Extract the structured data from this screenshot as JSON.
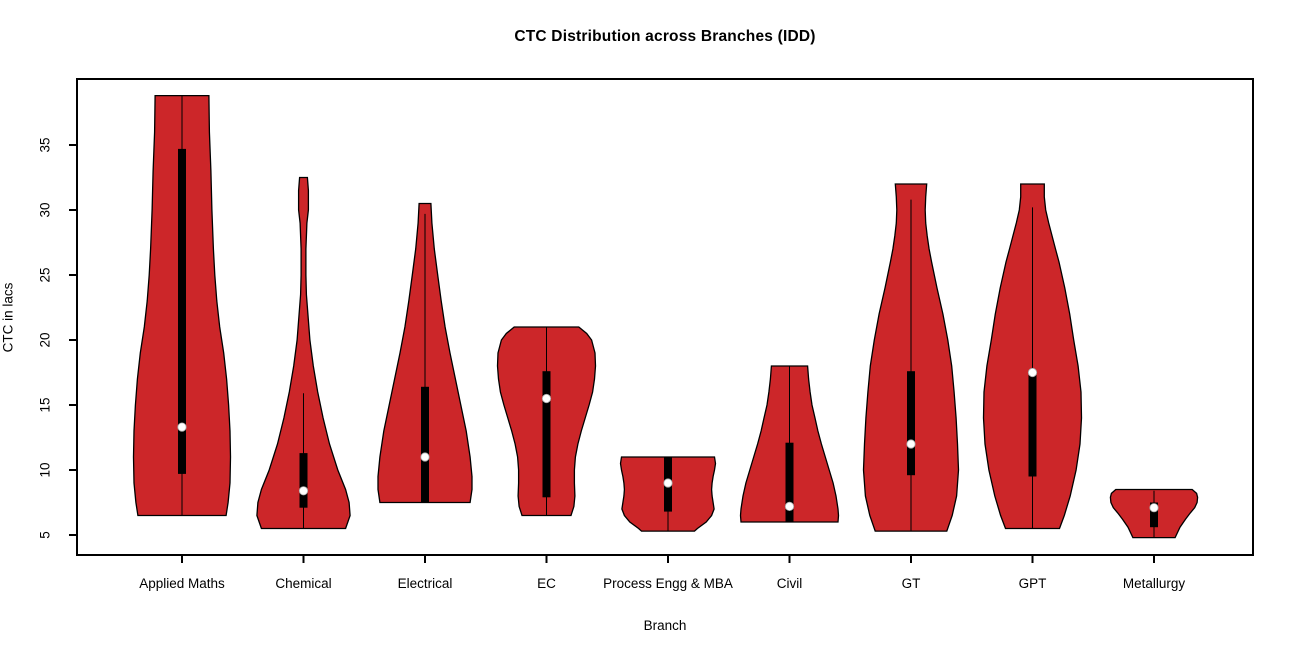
{
  "chart_data": {
    "type": "violin",
    "title": "CTC Distribution across Branches (IDD)",
    "xlabel": "Branch",
    "ylabel": "CTC in lacs",
    "ylim": [
      4.5,
      39.5
    ],
    "yticks": [
      5,
      10,
      15,
      20,
      25,
      30,
      35
    ],
    "grid": false,
    "legend": "none",
    "fill_color": "#CC2629",
    "outline_color": "#000000",
    "box_color": "#000000",
    "median_dot_color": "#FFFFFF",
    "categories": [
      "Applied Maths",
      "Chemical",
      "Electrical",
      "EC",
      "Process Engg & MBA",
      "Civil",
      "GT",
      "GPT",
      "Metallurgy"
    ],
    "series": [
      {
        "name": "Applied Maths",
        "min": 6.5,
        "max": 38.8,
        "median": 13.3,
        "q1": 9.7,
        "q3": 34.7,
        "whisker_low": 6.5,
        "whisker_high": 38.8,
        "profile": [
          [
            38.8,
            0.55
          ],
          [
            36,
            0.56
          ],
          [
            33,
            0.59
          ],
          [
            30,
            0.61
          ],
          [
            27,
            0.64
          ],
          [
            25,
            0.67
          ],
          [
            23,
            0.71
          ],
          [
            21,
            0.77
          ],
          [
            19,
            0.85
          ],
          [
            17,
            0.91
          ],
          [
            15,
            0.95
          ],
          [
            13,
            0.98
          ],
          [
            11,
            0.99
          ],
          [
            9,
            0.98
          ],
          [
            7.5,
            0.94
          ],
          [
            6.5,
            0.9
          ]
        ]
      },
      {
        "name": "Chemical",
        "min": 5.5,
        "max": 32.5,
        "median": 8.4,
        "q1": 7.1,
        "q3": 11.3,
        "whisker_low": 5.5,
        "whisker_high": 15.9,
        "profile": [
          [
            32.5,
            0.08
          ],
          [
            31.5,
            0.1
          ],
          [
            30,
            0.1
          ],
          [
            29,
            0.07
          ],
          [
            27,
            0.05
          ],
          [
            25,
            0.05
          ],
          [
            23.5,
            0.06
          ],
          [
            22,
            0.09
          ],
          [
            20,
            0.13
          ],
          [
            18,
            0.2
          ],
          [
            16,
            0.29
          ],
          [
            14,
            0.4
          ],
          [
            12,
            0.53
          ],
          [
            10,
            0.7
          ],
          [
            8.5,
            0.86
          ],
          [
            7.5,
            0.93
          ],
          [
            6.5,
            0.95
          ],
          [
            5.5,
            0.86
          ]
        ]
      },
      {
        "name": "Electrical",
        "min": 7.5,
        "max": 30.5,
        "median": 11.0,
        "q1": 7.5,
        "q3": 16.4,
        "whisker_low": 7.5,
        "whisker_high": 29.7,
        "profile": [
          [
            30.5,
            0.12
          ],
          [
            29,
            0.14
          ],
          [
            27,
            0.19
          ],
          [
            25,
            0.26
          ],
          [
            23,
            0.33
          ],
          [
            21,
            0.41
          ],
          [
            19,
            0.51
          ],
          [
            17,
            0.62
          ],
          [
            15,
            0.73
          ],
          [
            13,
            0.84
          ],
          [
            11,
            0.92
          ],
          [
            9.5,
            0.96
          ],
          [
            8.5,
            0.96
          ],
          [
            7.5,
            0.92
          ]
        ]
      },
      {
        "name": "EC",
        "min": 6.5,
        "max": 21.0,
        "median": 15.5,
        "q1": 7.9,
        "q3": 17.6,
        "whisker_low": 6.5,
        "whisker_high": 21.0,
        "profile": [
          [
            21,
            0.66
          ],
          [
            20.5,
            0.82
          ],
          [
            20,
            0.92
          ],
          [
            19,
            0.99
          ],
          [
            18,
            1.0
          ],
          [
            17,
            0.98
          ],
          [
            16,
            0.94
          ],
          [
            15,
            0.87
          ],
          [
            14,
            0.79
          ],
          [
            13,
            0.71
          ],
          [
            12,
            0.64
          ],
          [
            11,
            0.59
          ],
          [
            10,
            0.57
          ],
          [
            9,
            0.57
          ],
          [
            8,
            0.58
          ],
          [
            7.2,
            0.56
          ],
          [
            6.5,
            0.5
          ]
        ]
      },
      {
        "name": "Process Engg & MBA",
        "min": 5.3,
        "max": 11.0,
        "median": 9.0,
        "q1": 6.8,
        "q3": 11.0,
        "whisker_low": 5.3,
        "whisker_high": 11.0,
        "profile": [
          [
            11,
            0.95
          ],
          [
            10.5,
            0.97
          ],
          [
            10,
            0.95
          ],
          [
            9.5,
            0.92
          ],
          [
            9,
            0.9
          ],
          [
            8.5,
            0.89
          ],
          [
            8,
            0.9
          ],
          [
            7.5,
            0.92
          ],
          [
            7,
            0.94
          ],
          [
            6.5,
            0.89
          ],
          [
            6,
            0.78
          ],
          [
            5.5,
            0.6
          ],
          [
            5.3,
            0.54
          ]
        ]
      },
      {
        "name": "Civil",
        "min": 6.0,
        "max": 18.0,
        "median": 7.2,
        "q1": 6.0,
        "q3": 12.1,
        "whisker_low": 6.0,
        "whisker_high": 18.0,
        "profile": [
          [
            18,
            0.37
          ],
          [
            17,
            0.39
          ],
          [
            16,
            0.42
          ],
          [
            15,
            0.46
          ],
          [
            14,
            0.52
          ],
          [
            13,
            0.58
          ],
          [
            12,
            0.65
          ],
          [
            11,
            0.73
          ],
          [
            10,
            0.81
          ],
          [
            9,
            0.89
          ],
          [
            8,
            0.95
          ],
          [
            7,
            0.99
          ],
          [
            6.5,
            1.0
          ],
          [
            6,
            0.99
          ]
        ]
      },
      {
        "name": "GT",
        "min": 5.3,
        "max": 32.0,
        "median": 12.0,
        "q1": 9.6,
        "q3": 17.6,
        "whisker_low": 5.3,
        "whisker_high": 30.8,
        "profile": [
          [
            32,
            0.32
          ],
          [
            31,
            0.3
          ],
          [
            30,
            0.29
          ],
          [
            29,
            0.3
          ],
          [
            28,
            0.33
          ],
          [
            27,
            0.37
          ],
          [
            26,
            0.42
          ],
          [
            24,
            0.53
          ],
          [
            22,
            0.65
          ],
          [
            20,
            0.75
          ],
          [
            18,
            0.83
          ],
          [
            16,
            0.88
          ],
          [
            14,
            0.92
          ],
          [
            12,
            0.95
          ],
          [
            10,
            0.97
          ],
          [
            8,
            0.93
          ],
          [
            6.5,
            0.84
          ],
          [
            5.3,
            0.73
          ]
        ]
      },
      {
        "name": "GPT",
        "min": 5.5,
        "max": 32.0,
        "median": 17.5,
        "q1": 9.5,
        "q3": 17.5,
        "whisker_low": 5.5,
        "whisker_high": 30.2,
        "profile": [
          [
            32,
            0.24
          ],
          [
            31,
            0.24
          ],
          [
            30,
            0.27
          ],
          [
            29,
            0.33
          ],
          [
            28,
            0.4
          ],
          [
            27,
            0.47
          ],
          [
            26,
            0.54
          ],
          [
            24,
            0.66
          ],
          [
            22,
            0.76
          ],
          [
            20,
            0.84
          ],
          [
            18,
            0.93
          ],
          [
            16,
            0.99
          ],
          [
            14,
            1.0
          ],
          [
            12,
            0.97
          ],
          [
            10,
            0.89
          ],
          [
            8,
            0.77
          ],
          [
            6.5,
            0.65
          ],
          [
            5.5,
            0.55
          ]
        ]
      },
      {
        "name": "Metallurgy",
        "min": 4.8,
        "max": 8.5,
        "median": 7.1,
        "q1": 5.6,
        "q3": 7.5,
        "whisker_low": 4.8,
        "whisker_high": 8.4,
        "profile": [
          [
            8.5,
            0.78
          ],
          [
            8.2,
            0.87
          ],
          [
            7.9,
            0.89
          ],
          [
            7.5,
            0.88
          ],
          [
            7.1,
            0.83
          ],
          [
            6.7,
            0.74
          ],
          [
            6.2,
            0.64
          ],
          [
            5.6,
            0.53
          ],
          [
            4.8,
            0.43
          ]
        ]
      }
    ]
  }
}
